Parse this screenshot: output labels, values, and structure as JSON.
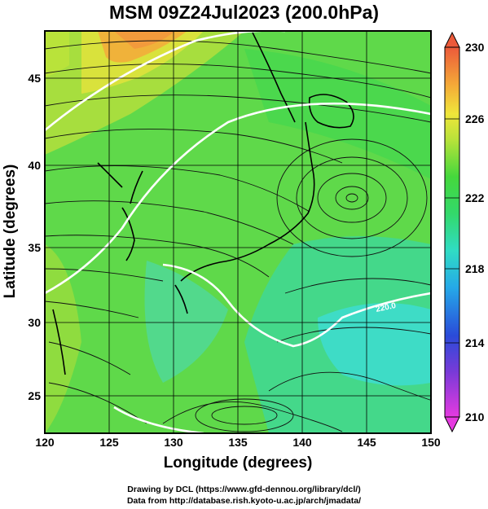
{
  "figure": {
    "title": "MSM 09Z24Jul2023 (200.0hPa)",
    "x_axis_label": "Longitude (degrees)",
    "y_axis_label": "Latitude  (degrees)",
    "x_ticks": [
      "120",
      "125",
      "130",
      "135",
      "140",
      "145",
      "150"
    ],
    "y_ticks": [
      "45",
      "40",
      "35",
      "30",
      "25"
    ],
    "colorbar_ticks": [
      "230",
      "226",
      "222",
      "218",
      "214",
      "210"
    ],
    "footer_line1": "Drawing by DCL (https://www.gfd-dennou.org/library/dcl/)",
    "footer_line2": "Data from http://database.rish.kyoto-u.ac.jp/arch/jmadata/",
    "contour_label": "220.0"
  },
  "map": {
    "lon_range": [
      120,
      150
    ],
    "lat_range": [
      22.5,
      48
    ],
    "grid_lon": [
      120,
      125,
      130,
      135,
      140,
      145,
      150
    ],
    "grid_lat": [
      25,
      30,
      35,
      40,
      45
    ],
    "colorbar_range": [
      210,
      230
    ],
    "colors": {
      "orange": "#f29a3c",
      "yellow_green": "#b9e33a",
      "green": "#3ed64a",
      "cyan": "#3edcc6",
      "colorbar_top": "#e8433a",
      "colorbar_bottom": "#e53ae0"
    }
  }
}
